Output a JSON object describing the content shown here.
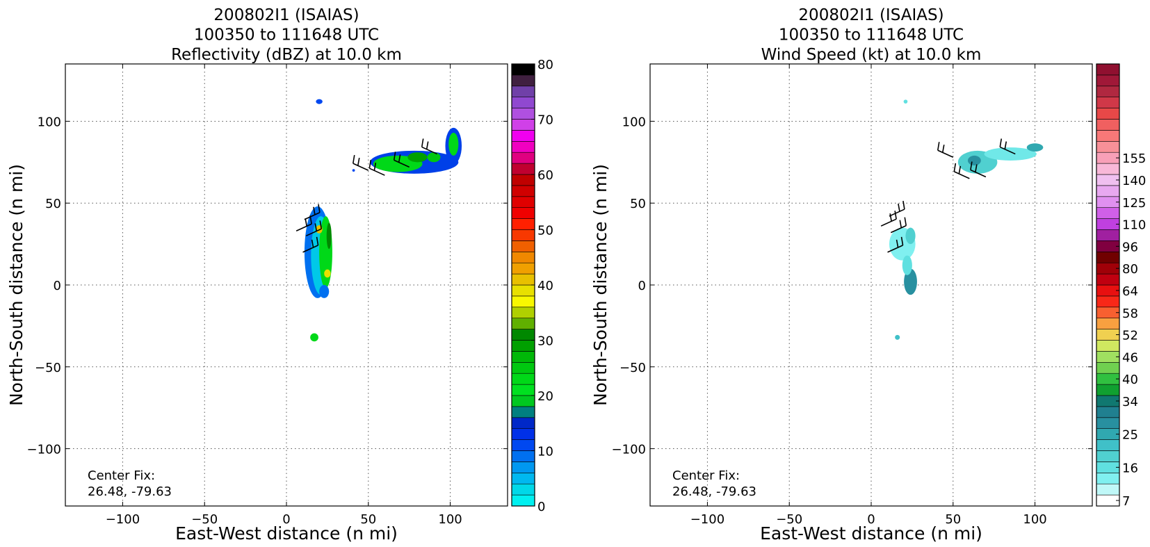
{
  "chart_data": [
    {
      "type": "heatmap",
      "title_lines": [
        "200802I1 (ISAIAS)",
        "100350 to 111648 UTC",
        "Reflectivity (dBZ) at 10.0 km"
      ],
      "xlabel": "East-West distance (n mi)",
      "ylabel": "North-South distance (n mi)",
      "xlim": [
        -135,
        135
      ],
      "ylim": [
        -135,
        135
      ],
      "xticks": [
        -100,
        -50,
        0,
        50,
        100
      ],
      "yticks": [
        -100,
        -50,
        0,
        50,
        100
      ],
      "tick_labels_x": [
        "−100",
        "−50",
        "0",
        "50",
        "100"
      ],
      "tick_labels_y": [
        "−100",
        "−50",
        "0",
        "50",
        "100"
      ],
      "grid": true,
      "annotation_lines": [
        "Center Fix:",
        "26.48, -79.63"
      ],
      "colorbar": {
        "min": 0,
        "max": 80,
        "tick_values": [
          0,
          10,
          20,
          30,
          40,
          50,
          60,
          70,
          80
        ],
        "tick_labels": [
          "0",
          "10",
          "20",
          "30",
          "40",
          "50",
          "60",
          "70",
          "80"
        ],
        "colors": [
          "#00f0f0",
          "#00d8e8",
          "#00b8f0",
          "#0098f0",
          "#0070f0",
          "#0048f0",
          "#0030e8",
          "#0028c8",
          "#008080",
          "#00c820",
          "#00e020",
          "#00d818",
          "#00c810",
          "#00b808",
          "#00a000",
          "#008800",
          "#60b000",
          "#b0d000",
          "#f8f800",
          "#e8e000",
          "#e8c000",
          "#f0a000",
          "#f08800",
          "#f06000",
          "#f83800",
          "#ff2000",
          "#f00000",
          "#e00000",
          "#d00000",
          "#c00000",
          "#c00030",
          "#e00080",
          "#f000c0",
          "#f000f0",
          "#d040e8",
          "#b050e0",
          "#9048d0",
          "#7040a8",
          "#402040",
          "#000000"
        ]
      },
      "regions": [
        {
          "name": "north-cluster",
          "blobs": [
            {
              "x": 78,
              "y": 75,
              "rx": 27,
              "ry": 7,
              "color": "#0040e8"
            },
            {
              "x": 102,
              "y": 85,
              "rx": 5,
              "ry": 11,
              "color": "#0040e8"
            },
            {
              "x": 68,
              "y": 74,
              "rx": 15,
              "ry": 5,
              "color": "#00d818"
            },
            {
              "x": 102,
              "y": 86,
              "rx": 3,
              "ry": 7,
              "color": "#00d818"
            },
            {
              "x": 80,
              "y": 78,
              "rx": 6,
              "ry": 3,
              "color": "#00a000"
            },
            {
              "x": 90,
              "y": 78,
              "rx": 4,
              "ry": 3,
              "color": "#00c810"
            }
          ]
        },
        {
          "name": "center-band",
          "blobs": [
            {
              "x": 19,
              "y": 20,
              "rx": 8,
              "ry": 28,
              "color": "#0070f0"
            },
            {
              "x": 21,
              "y": 18,
              "rx": 6,
              "ry": 24,
              "color": "#00c8e8"
            },
            {
              "x": 24,
              "y": 20,
              "rx": 4,
              "ry": 22,
              "color": "#00d818"
            },
            {
              "x": 26,
              "y": 30,
              "rx": 1.5,
              "ry": 8,
              "color": "#008800"
            },
            {
              "x": 20,
              "y": 34,
              "rx": 2,
              "ry": 2.5,
              "color": "#e8c000"
            },
            {
              "x": 25,
              "y": 7,
              "rx": 2,
              "ry": 2.5,
              "color": "#e8e000"
            },
            {
              "x": 23,
              "y": -4,
              "rx": 3,
              "ry": 4,
              "color": "#0070f0"
            }
          ]
        },
        {
          "name": "small-cells",
          "blobs": [
            {
              "x": 20,
              "y": 112,
              "rx": 2,
              "ry": 1.5,
              "color": "#0048f0"
            },
            {
              "x": 17,
              "y": -32,
              "rx": 2.5,
              "ry": 2.5,
              "color": "#00d818"
            },
            {
              "x": 41,
              "y": 70,
              "rx": 0.8,
              "ry": 0.8,
              "color": "#0048f0"
            }
          ]
        }
      ],
      "wind_barbs": [
        {
          "x": 50,
          "y": 70,
          "dir": 1
        },
        {
          "x": 60,
          "y": 67,
          "dir": 1
        },
        {
          "x": 75,
          "y": 72,
          "dir": 1
        },
        {
          "x": 92,
          "y": 80,
          "dir": 1
        },
        {
          "x": 11,
          "y": 40,
          "dir": -1
        },
        {
          "x": 12,
          "y": 30,
          "dir": -1
        },
        {
          "x": 10,
          "y": 20,
          "dir": -1
        },
        {
          "x": 6,
          "y": 33,
          "dir": -1
        }
      ]
    },
    {
      "type": "heatmap",
      "title_lines": [
        "200802I1 (ISAIAS)",
        "100350 to 111648 UTC",
        "Wind Speed (kt) at 10.0 km"
      ],
      "xlabel": "East-West distance (n mi)",
      "ylabel": "North-South distance (n mi)",
      "xlim": [
        -135,
        135
      ],
      "ylim": [
        -135,
        135
      ],
      "xticks": [
        -100,
        -50,
        0,
        50,
        100
      ],
      "yticks": [
        -100,
        -50,
        0,
        50,
        100
      ],
      "tick_labels_x": [
        "−100",
        "−50",
        "0",
        "50",
        "100"
      ],
      "tick_labels_y": [
        "−100",
        "−50",
        "0",
        "50",
        "100"
      ],
      "grid": true,
      "annotation_lines": [
        "Center Fix:",
        "26.48, -79.63"
      ],
      "colorbar": {
        "min": 4,
        "max": 160,
        "tick_values": [
          7,
          16,
          25,
          34,
          40,
          46,
          52,
          58,
          64,
          80,
          96,
          110,
          125,
          140,
          155
        ],
        "tick_labels": [
          "7",
          "16",
          "25",
          "34",
          "40",
          "46",
          "52",
          "58",
          "64",
          "80",
          "96",
          "110",
          "125",
          "140",
          "155"
        ],
        "tick_index": [
          0.5,
          3.5,
          6.5,
          9.5,
          11.5,
          13.5,
          15.5,
          17.5,
          19.5,
          21.5,
          23.5,
          25.5,
          27.5,
          29.5,
          31.5
        ],
        "colors": [
          "#ffffff",
          "#c0f8f8",
          "#80f0f0",
          "#60e0e0",
          "#50d0d0",
          "#40c0c8",
          "#30a8b0",
          "#2890a0",
          "#208090",
          "#107870",
          "#10a030",
          "#30c040",
          "#70d050",
          "#a0e060",
          "#d0e860",
          "#f0d050",
          "#f8a040",
          "#f86030",
          "#f82818",
          "#e81010",
          "#c00010",
          "#a00008",
          "#700000",
          "#800040",
          "#a020a0",
          "#c040e0",
          "#d060e8",
          "#e090f0",
          "#e8a8f0",
          "#f0c0f0",
          "#f8b8d8",
          "#f8a0b8",
          "#f89098",
          "#f87878",
          "#f06060",
          "#e84848",
          "#d03848",
          "#b02840",
          "#a01838",
          "#901030"
        ]
      },
      "regions": [
        {
          "name": "north-cluster",
          "blobs": [
            {
              "x": 65,
              "y": 75,
              "rx": 12,
              "ry": 7,
              "color": "#50d0d0"
            },
            {
              "x": 85,
              "y": 80,
              "rx": 16,
              "ry": 4,
              "color": "#70e8e8"
            },
            {
              "x": 100,
              "y": 84,
              "rx": 5,
              "ry": 2.5,
              "color": "#30a8b0"
            },
            {
              "x": 63,
              "y": 76,
              "rx": 4,
              "ry": 3,
              "color": "#2890a0"
            }
          ]
        },
        {
          "name": "center-band",
          "blobs": [
            {
              "x": 19,
              "y": 25,
              "rx": 8,
              "ry": 10,
              "color": "#80f0f0"
            },
            {
              "x": 24,
              "y": 30,
              "rx": 3,
              "ry": 5,
              "color": "#50d0d0"
            },
            {
              "x": 24,
              "y": 2,
              "rx": 4,
              "ry": 8,
              "color": "#2890a0"
            },
            {
              "x": 22,
              "y": 12,
              "rx": 3,
              "ry": 6,
              "color": "#60e0e0"
            }
          ]
        },
        {
          "name": "small-cells",
          "blobs": [
            {
              "x": 21,
              "y": 112,
              "rx": 1.2,
              "ry": 1.2,
              "color": "#60e0e0"
            },
            {
              "x": 16,
              "y": -32,
              "rx": 1.5,
              "ry": 1.5,
              "color": "#40c0c8"
            }
          ]
        }
      ],
      "wind_barbs": [
        {
          "x": 50,
          "y": 78,
          "dir": 1
        },
        {
          "x": 60,
          "y": 65,
          "dir": 1
        },
        {
          "x": 70,
          "y": 66,
          "dir": 1
        },
        {
          "x": 88,
          "y": 80,
          "dir": 1
        },
        {
          "x": 11,
          "y": 42,
          "dir": -1
        },
        {
          "x": 12,
          "y": 32,
          "dir": -1
        },
        {
          "x": 10,
          "y": 20,
          "dir": -1
        },
        {
          "x": 6,
          "y": 36,
          "dir": -1
        }
      ]
    }
  ]
}
